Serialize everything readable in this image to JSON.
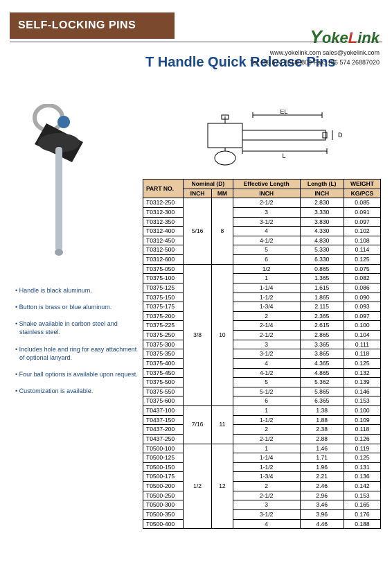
{
  "header": {
    "title": "SELF-LOCKING PINS"
  },
  "brand": {
    "logo_text": "YokeLink",
    "contact_line1": "www.yokelink.com sales@yokelink.com",
    "contact_line2": "Tel:+86 574 86180809 Fax: +86 574 26887020"
  },
  "page_title": "T Handle Quick Release Pins",
  "diagram_labels": {
    "el": "EL",
    "l": "L",
    "d": "D"
  },
  "features": [
    "Handle is black aluminum.",
    "Button is brass or blue aluminum.",
    "Shake available in carbon steel and stainless steel.",
    "Includes hole and ring for easy attachment of optional lanyard.",
    "Four ball options is available upon request.",
    "Customization is available."
  ],
  "table": {
    "header": {
      "part_no": "PART NO.",
      "nominal": "Nominal (D)",
      "eff_len": "Effective Length",
      "len": "Length (L)",
      "weight": "WEIGHT",
      "sub_inch": "INCH",
      "sub_mm": "MM",
      "sub_kg": "KG/PCS"
    },
    "groups": [
      {
        "nominal_inch": "5/16",
        "nominal_mm": "8",
        "rows": [
          {
            "pn": "T0312-250",
            "el": "2-1/2",
            "l": "2.830",
            "w": "0.085"
          },
          {
            "pn": "T0312-300",
            "el": "3",
            "l": "3.330",
            "w": "0.091"
          },
          {
            "pn": "T0312-350",
            "el": "3-1/2",
            "l": "3.830",
            "w": "0.097"
          },
          {
            "pn": "T0312-400",
            "el": "4",
            "l": "4.330",
            "w": "0.102"
          },
          {
            "pn": "T0312-450",
            "el": "4-1/2",
            "l": "4.830",
            "w": "0.108"
          },
          {
            "pn": "T0312-500",
            "el": "5",
            "l": "5.330",
            "w": "0.114"
          },
          {
            "pn": "T0312-600",
            "el": "6",
            "l": "6.330",
            "w": "0.125"
          }
        ]
      },
      {
        "nominal_inch": "3/8",
        "nominal_mm": "10",
        "rows": [
          {
            "pn": "T0375-050",
            "el": "1/2",
            "l": "0.865",
            "w": "0.075"
          },
          {
            "pn": "T0375-100",
            "el": "1",
            "l": "1.365",
            "w": "0.082"
          },
          {
            "pn": "T0375-125",
            "el": "1-1/4",
            "l": "1.615",
            "w": "0.086"
          },
          {
            "pn": "T0375-150",
            "el": "1-1/2",
            "l": "1.865",
            "w": "0.090"
          },
          {
            "pn": "T0375-175",
            "el": "1-3/4",
            "l": "2.115",
            "w": "0.093"
          },
          {
            "pn": "T0375-200",
            "el": "2",
            "l": "2.365",
            "w": "0.097"
          },
          {
            "pn": "T0375-225",
            "el": "2-1/4",
            "l": "2.615",
            "w": "0.100"
          },
          {
            "pn": "T0375-250",
            "el": "2-1/2",
            "l": "2.865",
            "w": "0.104"
          },
          {
            "pn": "T0375-300",
            "el": "3",
            "l": "3.365",
            "w": "0.111"
          },
          {
            "pn": "T0375-350",
            "el": "3-1/2",
            "l": "3.865",
            "w": "0.118"
          },
          {
            "pn": "T0375-400",
            "el": "4",
            "l": "4.365",
            "w": "0.125"
          },
          {
            "pn": "T0375-450",
            "el": "4-1/2",
            "l": "4.865",
            "w": "0.132"
          },
          {
            "pn": "T0375-500",
            "el": "5",
            "l": "5.362",
            "w": "0.139"
          },
          {
            "pn": "T0375-550",
            "el": "5-1/2",
            "l": "5.865",
            "w": "0.146"
          },
          {
            "pn": "T0375-600",
            "el": "6",
            "l": "6.365",
            "w": "0.153"
          }
        ]
      },
      {
        "nominal_inch": "7/16",
        "nominal_mm": "11",
        "rows": [
          {
            "pn": "T0437-100",
            "el": "1",
            "l": "1.38",
            "w": "0.100"
          },
          {
            "pn": "T0437-150",
            "el": "1-1/2",
            "l": "1.88",
            "w": "0.109"
          },
          {
            "pn": "T0437-200",
            "el": "2",
            "l": "2.38",
            "w": "0.118"
          },
          {
            "pn": "T0437-250",
            "el": "2-1/2",
            "l": "2.88",
            "w": "0.126"
          }
        ]
      },
      {
        "nominal_inch": "1/2",
        "nominal_mm": "12",
        "rows": [
          {
            "pn": "T0500-100",
            "el": "1",
            "l": "1.46",
            "w": "0.119"
          },
          {
            "pn": "T0500-125",
            "el": "1-1/4",
            "l": "1.71",
            "w": "0.125"
          },
          {
            "pn": "T0500-150",
            "el": "1-1/2",
            "l": "1.96",
            "w": "0.131"
          },
          {
            "pn": "T0500-175",
            "el": "1-3/4",
            "l": "2.21",
            "w": "0.136"
          },
          {
            "pn": "T0500-200",
            "el": "2",
            "l": "2.46",
            "w": "0.142"
          },
          {
            "pn": "T0500-250",
            "el": "2-1/2",
            "l": "2.96",
            "w": "0.153"
          },
          {
            "pn": "T0500-300",
            "el": "3",
            "l": "3.46",
            "w": "0.165"
          },
          {
            "pn": "T0500-350",
            "el": "3-1/2",
            "l": "3.96",
            "w": "0.176"
          },
          {
            "pn": "T0500-400",
            "el": "4",
            "l": "4.46",
            "w": "0.188"
          }
        ]
      }
    ]
  },
  "colors": {
    "header_band_bg": "#7b4a2e",
    "title_color": "#1a4a8a",
    "table_header_bg": "#e8c9a0",
    "logo_green": "#2a6b2a",
    "logo_red": "#c0392b"
  }
}
